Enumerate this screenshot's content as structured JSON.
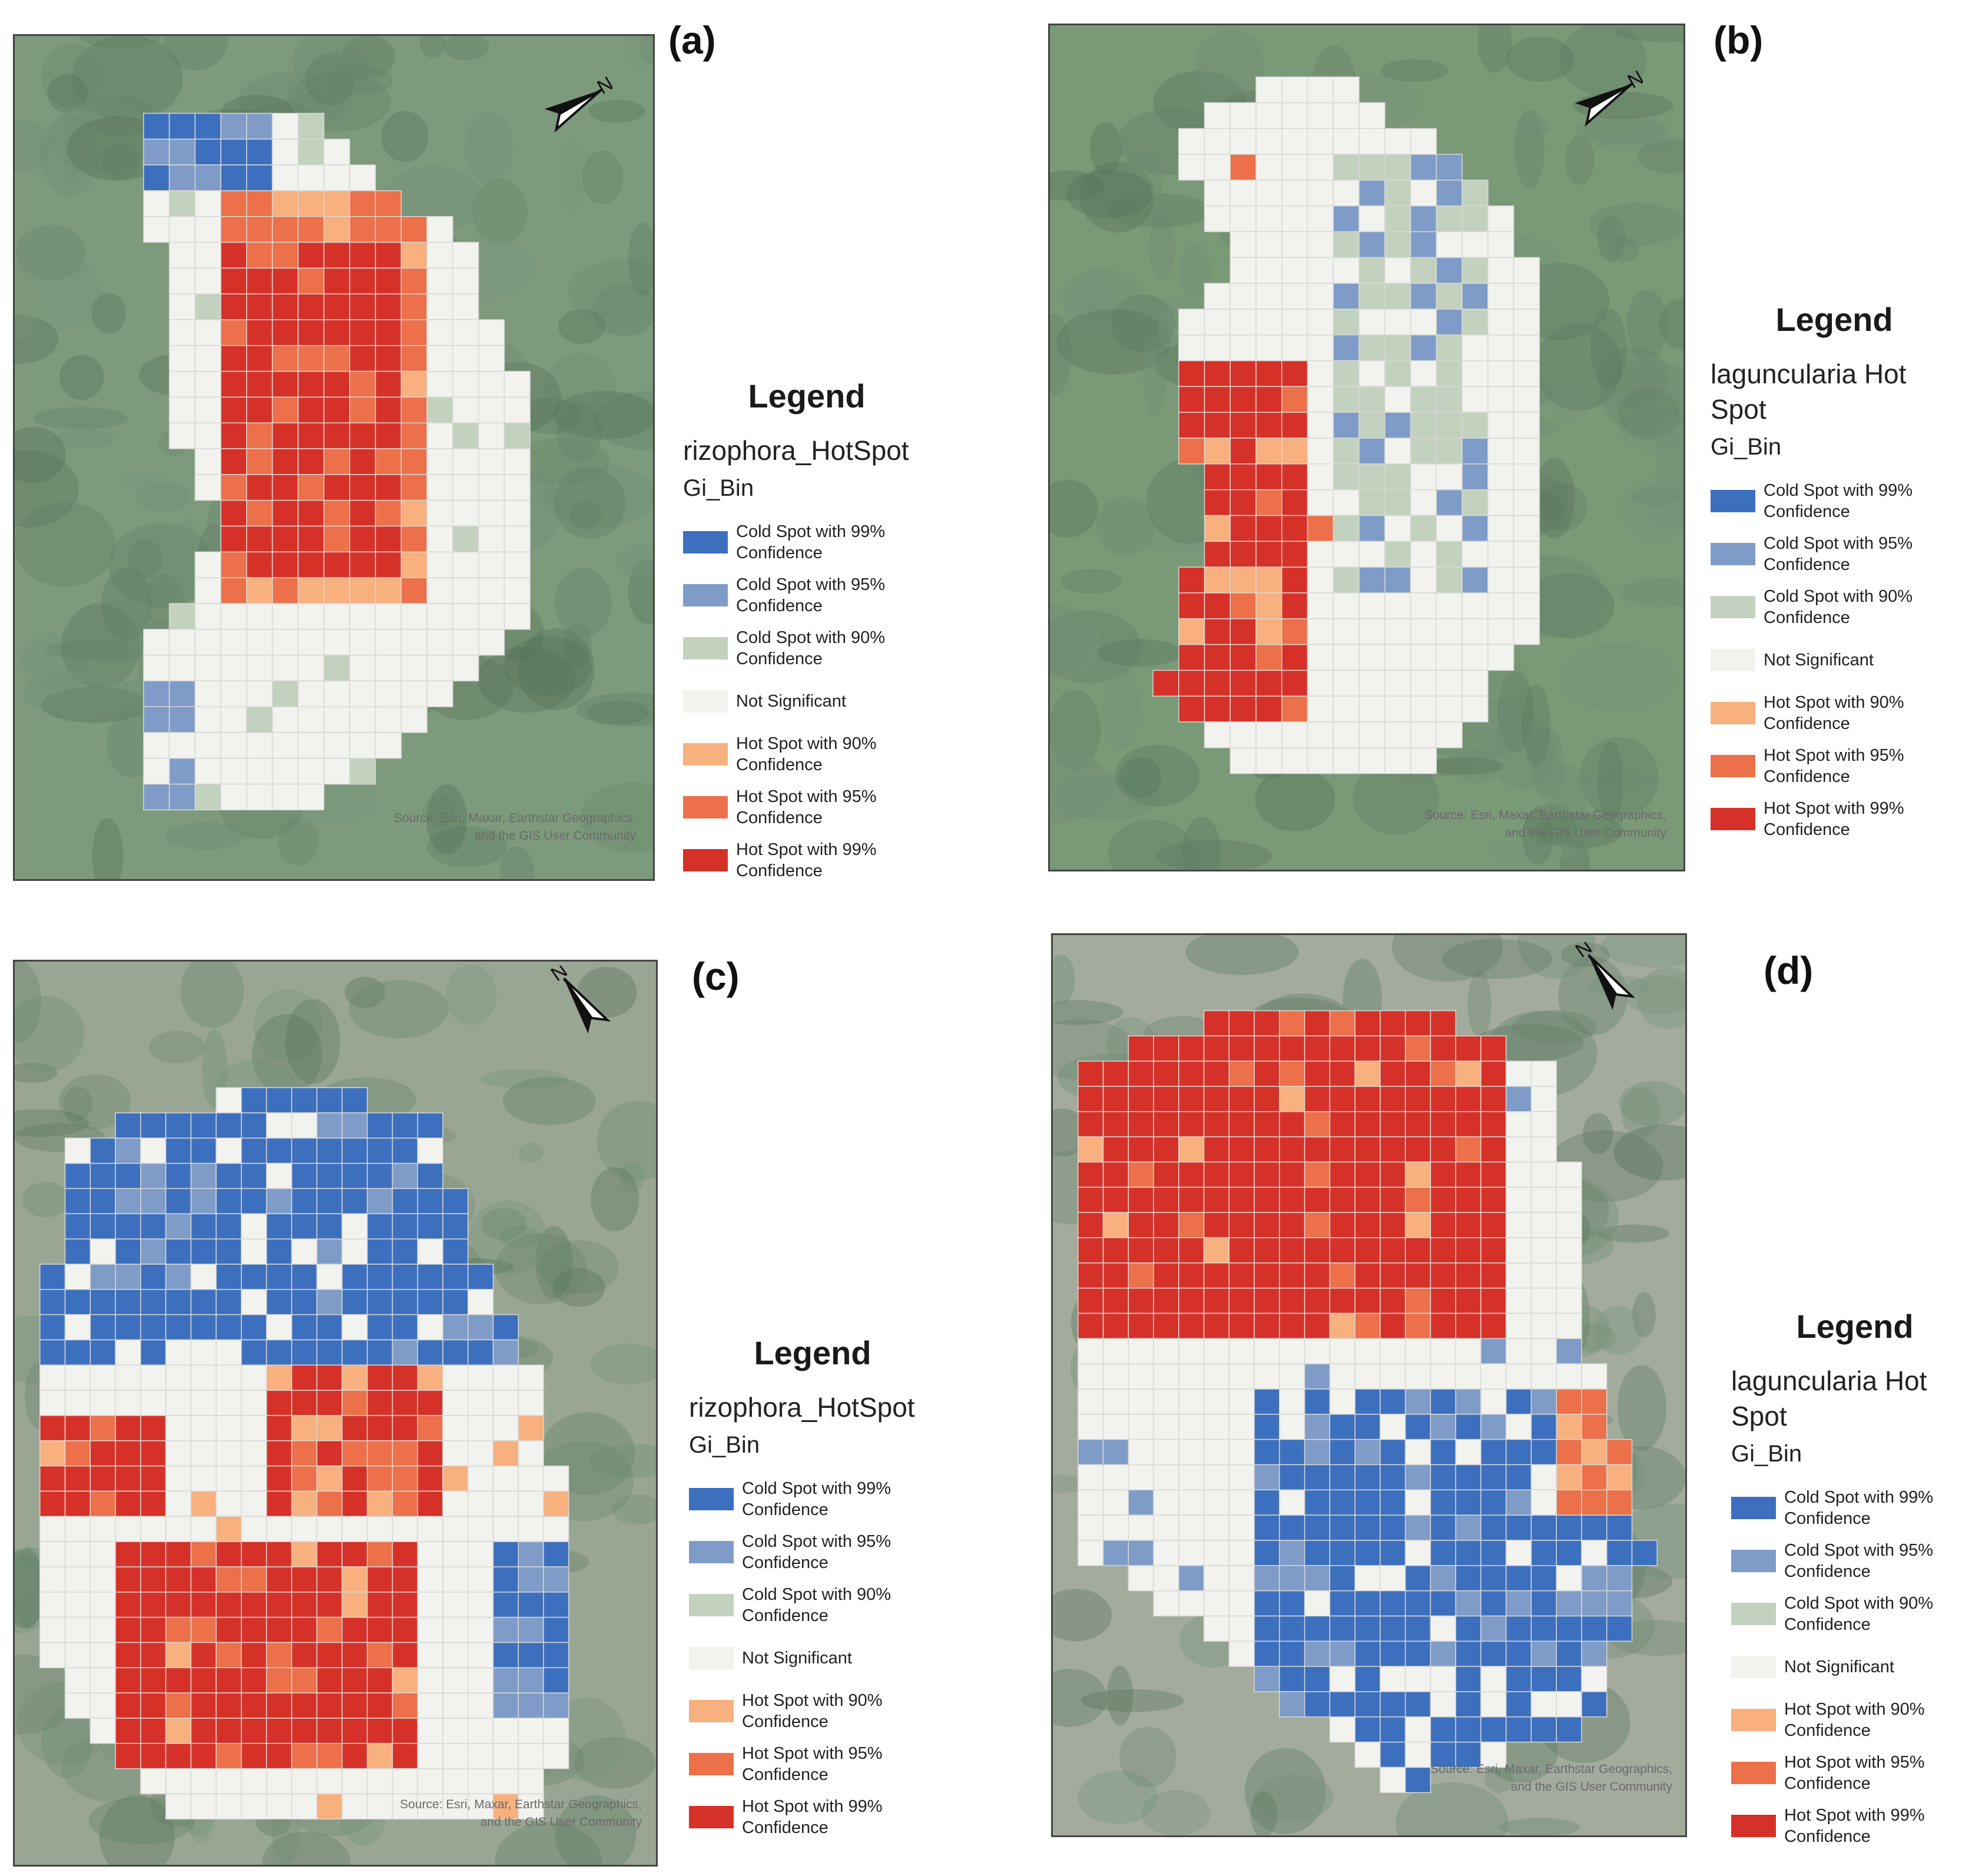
{
  "legend_title": "Legend",
  "field_name": "Gi_Bin",
  "source_text": [
    "Source: Esri, Maxar, Earthstar Geographics,",
    "and the GIS User Community"
  ],
  "categories": [
    {
      "key": "c99",
      "label": [
        "Cold Spot with 99%",
        "Confidence"
      ],
      "color": "#3d6fbf"
    },
    {
      "key": "c95",
      "label": [
        "Cold Spot with 95%",
        "Confidence"
      ],
      "color": "#7f9cc8"
    },
    {
      "key": "c90",
      "label": [
        "Cold Spot with 90%",
        "Confidence"
      ],
      "color": "#c3d2bf"
    },
    {
      "key": "ns",
      "label": [
        "Not Significant",
        ""
      ],
      "color": "#f2f2ee"
    },
    {
      "key": "h90",
      "label": [
        "Hot Spot with 90%",
        "Confidence"
      ],
      "color": "#f8b07e"
    },
    {
      "key": "h95",
      "label": [
        "Hot Spot with 95%",
        "Confidence"
      ],
      "color": "#ec7049"
    },
    {
      "key": "h99",
      "label": [
        "Hot Spot with 99%",
        "Confidence"
      ],
      "color": "#d63128"
    }
  ],
  "panels": [
    {
      "id": "a",
      "label": "(a)",
      "layer": "rizophora_HotSpot",
      "hot": "mid",
      "cold": "tl"
    },
    {
      "id": "b",
      "label": "(b)",
      "layer": "laguncularia Hot Spot",
      "hot": "left",
      "cold": "right"
    },
    {
      "id": "c",
      "label": "(c)",
      "layer": "rizophora_HotSpot",
      "hot": "lower",
      "cold": "upper"
    },
    {
      "id": "d",
      "label": "(d)",
      "layer": "laguncularia Hot Spot",
      "hot": "upper",
      "cold": "lower"
    }
  ]
}
